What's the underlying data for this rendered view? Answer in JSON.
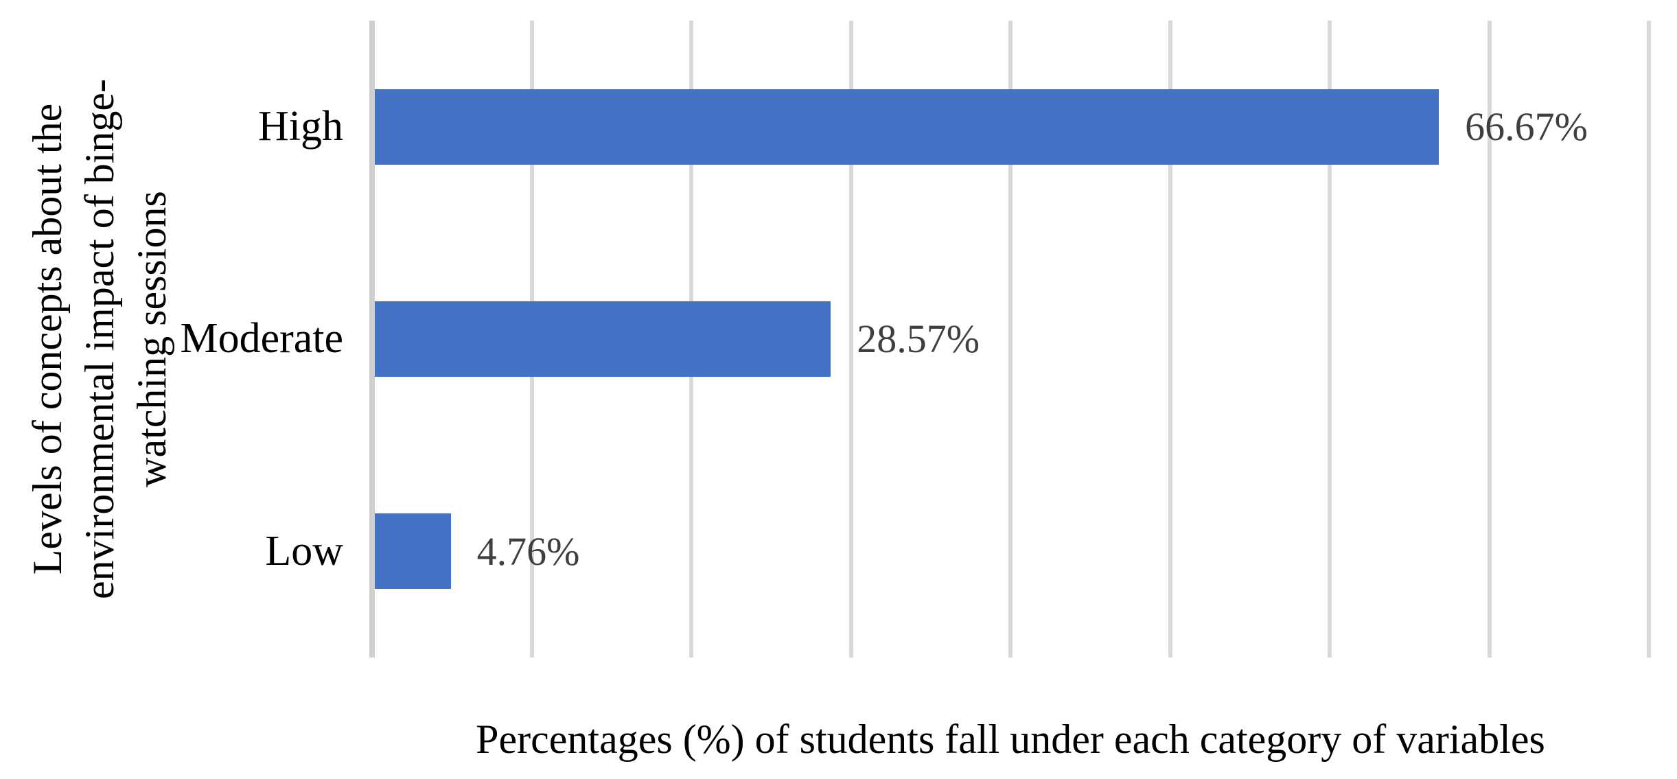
{
  "chart_data": {
    "type": "bar",
    "orientation": "horizontal",
    "categories": [
      "High",
      "Moderate",
      "Low"
    ],
    "values": [
      66.67,
      28.57,
      4.76
    ],
    "value_labels": [
      "66.67%",
      "28.57%",
      "4.76%"
    ],
    "title": "",
    "xlabel": "Percentages (%) of students fall under each category of variables",
    "ylabel": "Levels of concepts about the environmental impact of binge-watching sessions",
    "ylabel_lines": [
      "Levels of concepts about the",
      "environmental impact of binge-",
      "watching sessions"
    ],
    "xlim": [
      0,
      80
    ],
    "gridline_step": 10,
    "grid": true,
    "legend": false,
    "colors": {
      "bar": "#4472C4",
      "gridline": "#D9D9D9",
      "axis_line": "#D0D0D0",
      "value_label": "#3F3F3F",
      "text": "#000000",
      "background": "#FFFFFF"
    }
  }
}
